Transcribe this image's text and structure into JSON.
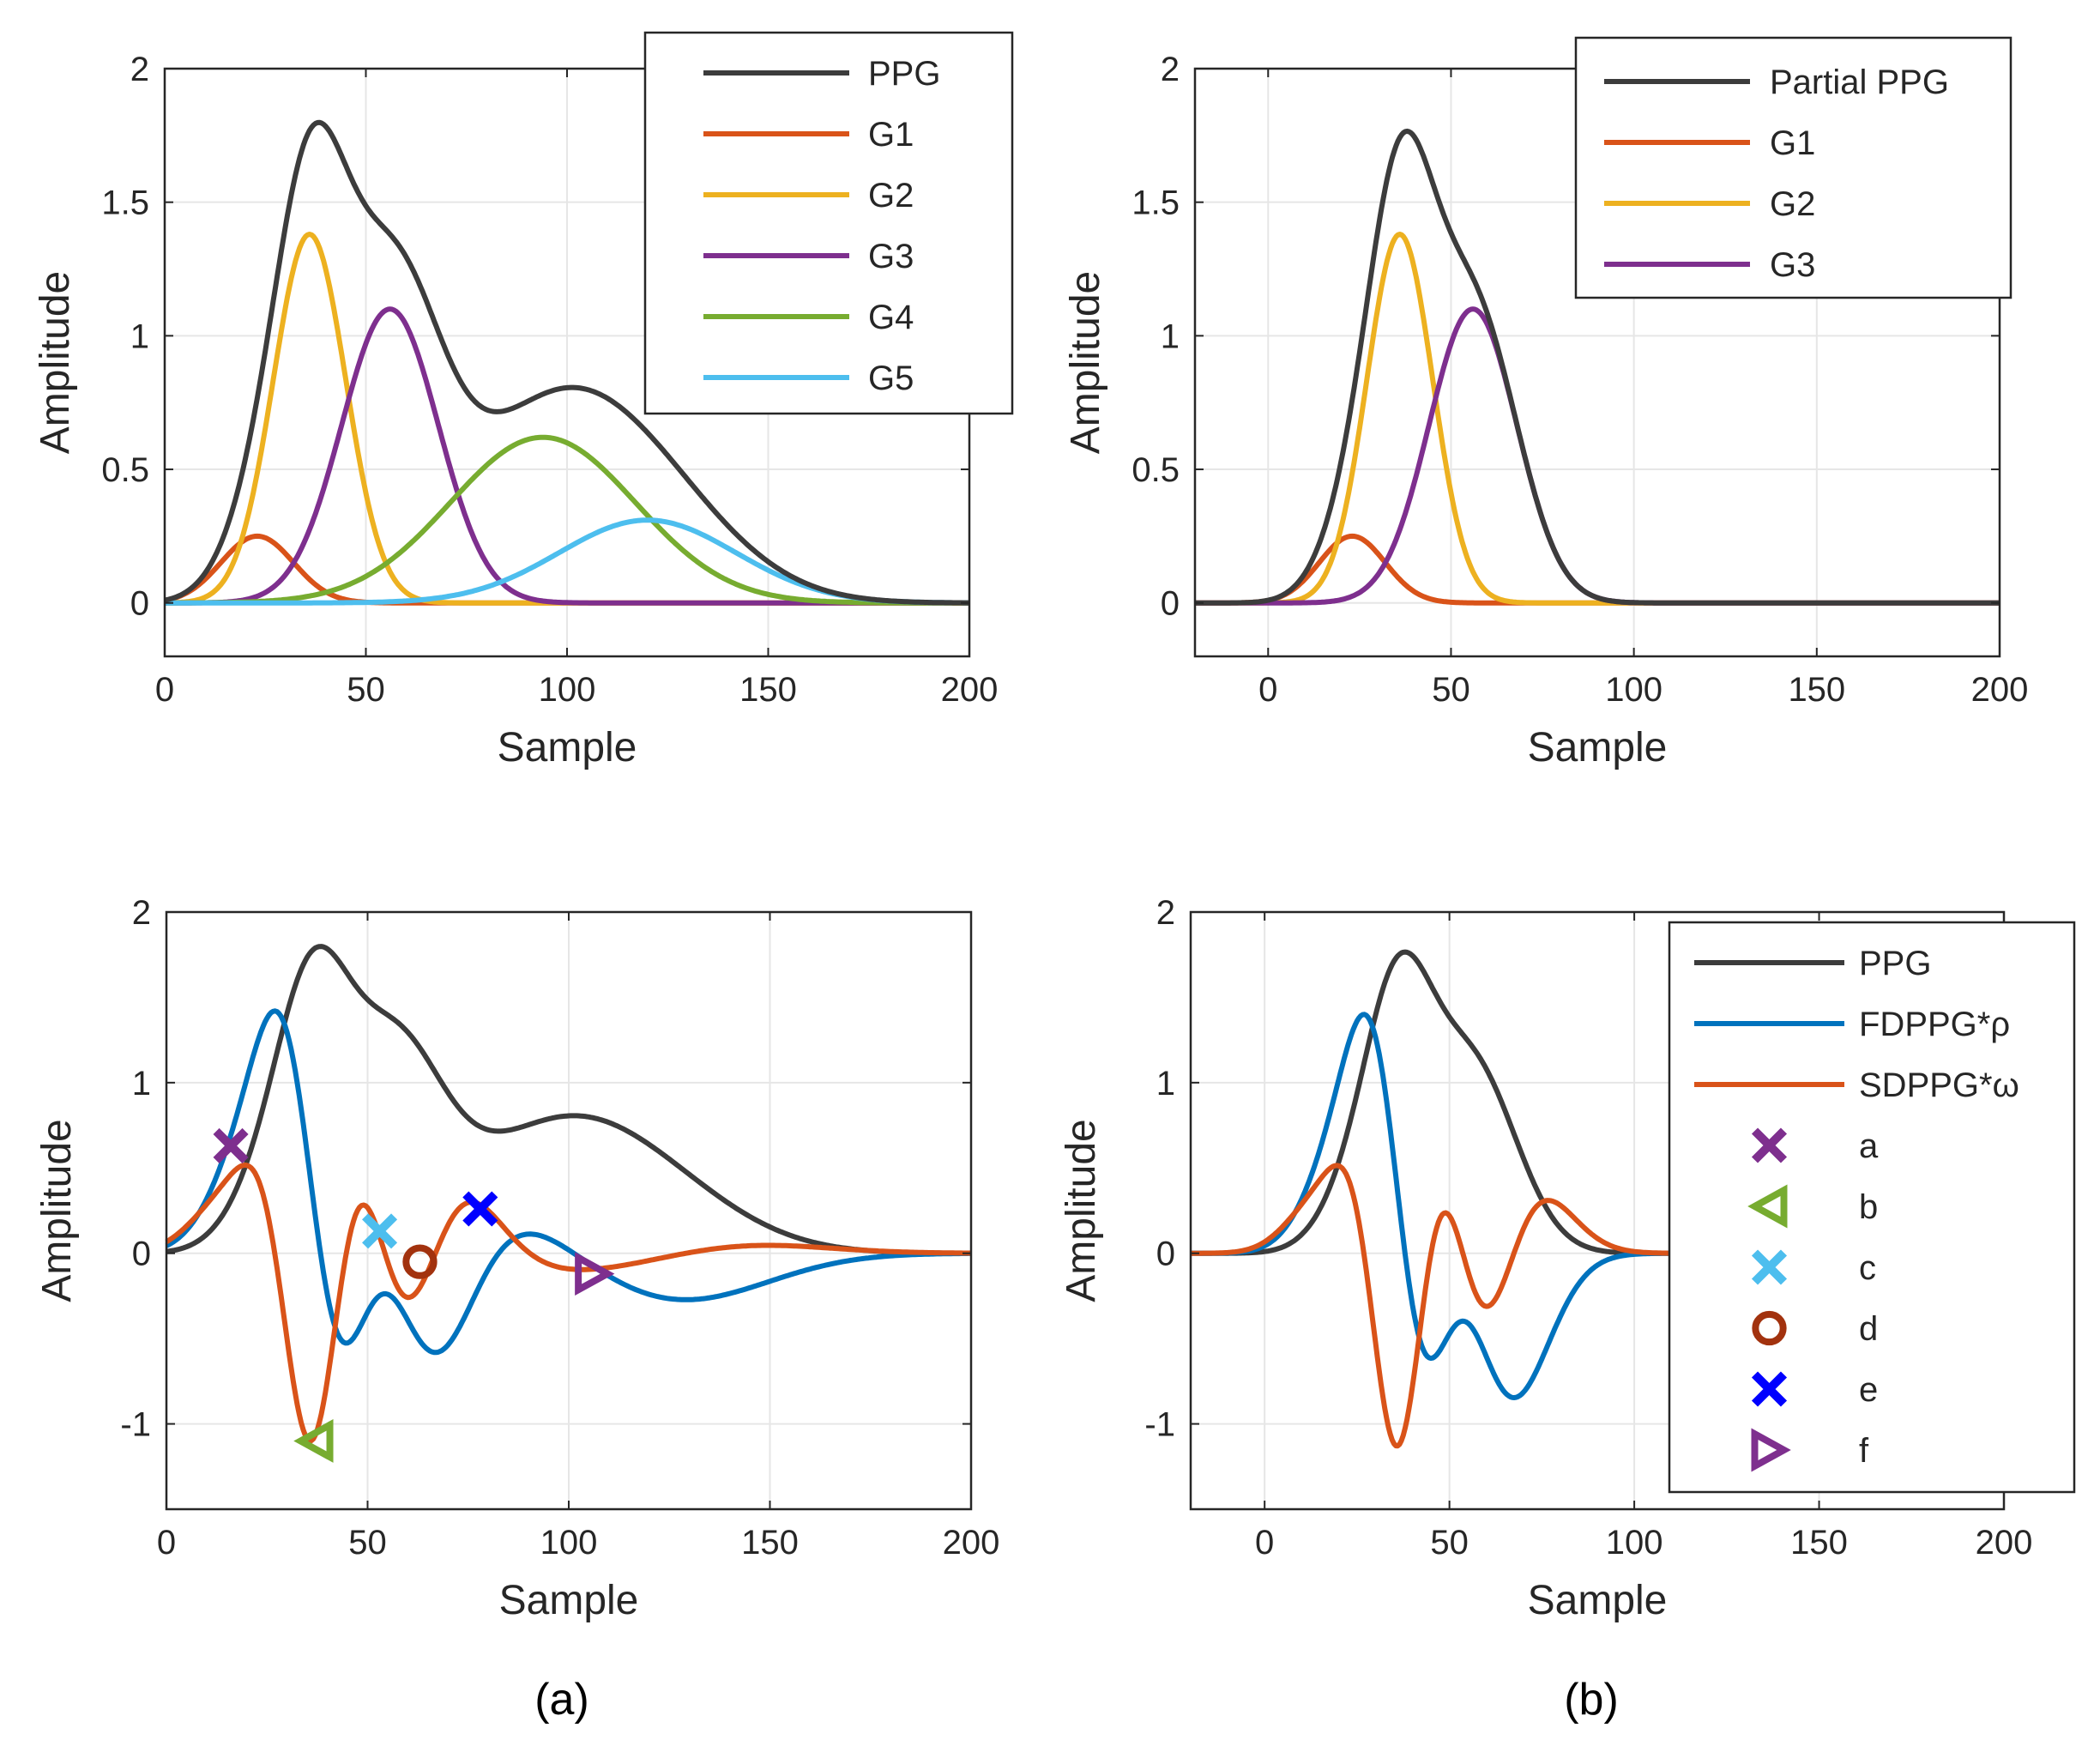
{
  "colors": {
    "PPG": "#3c3c3c",
    "G1": "#d95319",
    "G2": "#edb120",
    "G3": "#7e2f8e",
    "G4": "#77ac30",
    "G5": "#4dbeee",
    "FDPPG": "#0072bd",
    "SDPPG": "#d95319",
    "a": "#7e2f8e",
    "b": "#77ac30",
    "c": "#4dbeee",
    "d": "#a2320e",
    "e": "#0000ff",
    "f": "#7e2f8e",
    "grid": "#e6e6e6",
    "axis": "#262626"
  },
  "captions": {
    "a": "(a)",
    "b": "(b)"
  },
  "chart_data": [
    {
      "id": "top-left",
      "type": "line",
      "xlabel": "Sample",
      "ylabel": "Amplitude",
      "xlim": [
        0,
        200
      ],
      "ylim": [
        -0.2,
        2
      ],
      "xticks": [
        0,
        50,
        100,
        150,
        200
      ],
      "yticks": [
        0,
        0.5,
        1,
        1.5,
        2
      ],
      "xtick_labels": [
        "0",
        "50",
        "100",
        "150",
        "200"
      ],
      "ytick_labels": [
        "0",
        "0.5",
        "1",
        "1.5",
        "2"
      ],
      "grid": true,
      "legend_position": "top-right",
      "series": [
        {
          "name": "PPG",
          "kind": "sum",
          "of": [
            "G1",
            "G2",
            "G3",
            "G4",
            "G5"
          ]
        },
        {
          "name": "G1",
          "amp": 0.25,
          "mu": 23,
          "sigma": 9
        },
        {
          "name": "G2",
          "amp": 1.38,
          "mu": 36,
          "sigma": 9
        },
        {
          "name": "G3",
          "amp": 1.1,
          "mu": 56,
          "sigma": 12
        },
        {
          "name": "G4",
          "amp": 0.62,
          "mu": 94,
          "sigma": 23
        },
        {
          "name": "G5",
          "amp": 0.31,
          "mu": 120,
          "sigma": 22
        }
      ]
    },
    {
      "id": "top-right",
      "type": "line",
      "xlabel": "Sample",
      "ylabel": "Amplitude",
      "xlim": [
        -20,
        200
      ],
      "ylim": [
        -0.2,
        2
      ],
      "xticks": [
        0,
        50,
        100,
        150,
        200
      ],
      "yticks": [
        0,
        0.5,
        1,
        1.5,
        2
      ],
      "xtick_labels": [
        "0",
        "50",
        "100",
        "150",
        "200"
      ],
      "ytick_labels": [
        "0",
        "0.5",
        "1",
        "1.5",
        "2"
      ],
      "grid": true,
      "legend_position": "top-right",
      "series": [
        {
          "name": "Partial PPG",
          "kind": "sum",
          "of": [
            "G1",
            "G2",
            "G3"
          ]
        },
        {
          "name": "G1",
          "amp": 0.25,
          "mu": 23,
          "sigma": 9
        },
        {
          "name": "G2",
          "amp": 1.38,
          "mu": 36,
          "sigma": 9
        },
        {
          "name": "G3",
          "amp": 1.1,
          "mu": 56,
          "sigma": 12
        }
      ]
    },
    {
      "id": "bottom-left",
      "type": "line",
      "xlabel": "Sample",
      "ylabel": "Amplitude",
      "xlim": [
        0,
        200
      ],
      "ylim": [
        -1.5,
        2
      ],
      "xticks": [
        0,
        50,
        100,
        150,
        200
      ],
      "yticks": [
        -1,
        0,
        1,
        2
      ],
      "xtick_labels": [
        "0",
        "50",
        "100",
        "150",
        "200"
      ],
      "ytick_labels": [
        "-1",
        "0",
        "1",
        "2"
      ],
      "grid": true,
      "series": [
        {
          "name": "PPG",
          "kind": "sum5"
        },
        {
          "name": "FDPPG*ρ",
          "kind": "d1",
          "scale": 1.42
        },
        {
          "name": "SDPPG*ω",
          "kind": "d2",
          "scale": 1.1
        }
      ],
      "markers": [
        {
          "label": "a",
          "shape": "x",
          "x": 16,
          "y": 0.63
        },
        {
          "label": "b",
          "shape": "tri-left",
          "x": 37,
          "y": -1.1
        },
        {
          "label": "c",
          "shape": "x",
          "x": 53,
          "y": 0.13
        },
        {
          "label": "d",
          "shape": "circle",
          "x": 63,
          "y": -0.05
        },
        {
          "label": "e",
          "shape": "x",
          "x": 78,
          "y": 0.26
        },
        {
          "label": "f",
          "shape": "tri-right",
          "x": 106,
          "y": -0.12
        }
      ]
    },
    {
      "id": "bottom-right",
      "type": "line",
      "xlabel": "Sample",
      "ylabel": "Amplitude",
      "xlim": [
        -20,
        200
      ],
      "ylim": [
        -1.5,
        2
      ],
      "xticks": [
        0,
        50,
        100,
        150,
        200
      ],
      "yticks": [
        -1,
        0,
        1,
        2
      ],
      "xtick_labels": [
        "0",
        "50",
        "100",
        "150",
        "200"
      ],
      "ytick_labels": [
        "-1",
        "0",
        "1",
        "2"
      ],
      "grid": true,
      "legend_position": "right",
      "series": [
        {
          "name": "PPG",
          "kind": "sum3"
        },
        {
          "name": "FDPPG*ρ",
          "kind": "d1",
          "scale": 1.4
        },
        {
          "name": "SDPPG*ω",
          "kind": "d2",
          "scale": 1.13
        }
      ],
      "legend_entries": [
        {
          "label": "PPG",
          "type": "line",
          "color_key": "PPG"
        },
        {
          "label": "FDPPG*ρ",
          "type": "line",
          "color_key": "FDPPG"
        },
        {
          "label": "SDPPG*ω",
          "type": "line",
          "color_key": "SDPPG"
        },
        {
          "label": "a",
          "type": "marker",
          "shape": "x",
          "color_key": "a"
        },
        {
          "label": "b",
          "type": "marker",
          "shape": "tri-left",
          "color_key": "b"
        },
        {
          "label": "c",
          "type": "marker",
          "shape": "x",
          "color_key": "c"
        },
        {
          "label": "d",
          "type": "marker",
          "shape": "circle",
          "color_key": "d"
        },
        {
          "label": "e",
          "type": "marker",
          "shape": "x",
          "color_key": "e"
        },
        {
          "label": "f",
          "type": "marker",
          "shape": "tri-right",
          "color_key": "f"
        }
      ]
    }
  ]
}
